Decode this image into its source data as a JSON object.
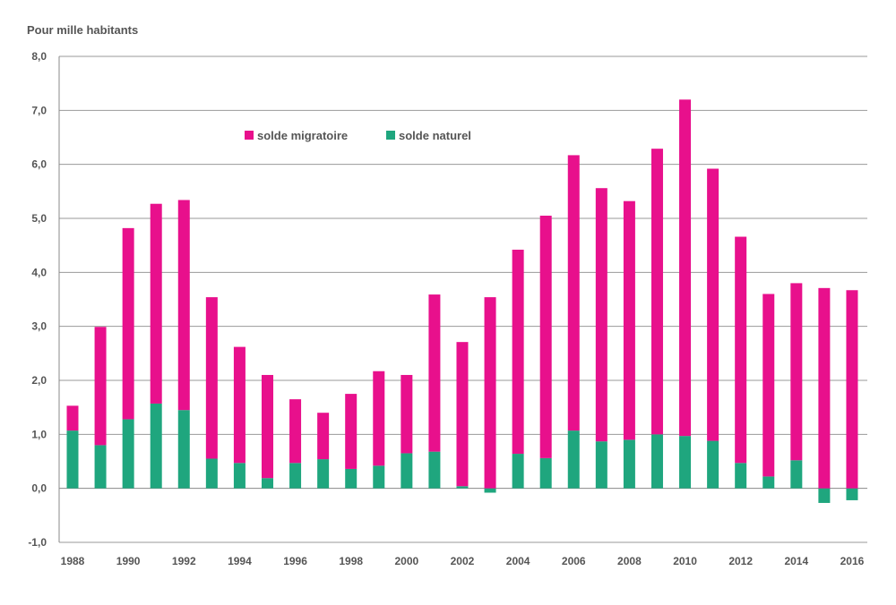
{
  "chart_data": {
    "type": "bar",
    "stacked": true,
    "ylabel": "Pour mille habitants",
    "ylim": [
      -1.0,
      8.0
    ],
    "y_ticks": [
      "-1,0",
      "0,0",
      "1,0",
      "2,0",
      "3,0",
      "4,0",
      "5,0",
      "6,0",
      "7,0",
      "8,0"
    ],
    "grid": true,
    "x": [
      1988,
      1989,
      1990,
      1991,
      1992,
      1993,
      1994,
      1995,
      1996,
      1997,
      1998,
      1999,
      2000,
      2001,
      2002,
      2003,
      2004,
      2005,
      2006,
      2007,
      2008,
      2009,
      2010,
      2011,
      2012,
      2013,
      2014,
      2015,
      2016
    ],
    "x_tick_labels": [
      "1988",
      "1990",
      "1992",
      "1994",
      "1996",
      "1998",
      "2000",
      "2002",
      "2004",
      "2006",
      "2008",
      "2010",
      "2012",
      "2014",
      "2016"
    ],
    "series": [
      {
        "name": "solde naturel",
        "color": "#1fa67e",
        "values": [
          1.07,
          0.8,
          1.28,
          1.57,
          1.45,
          0.55,
          0.47,
          0.19,
          0.47,
          0.54,
          0.36,
          0.42,
          0.65,
          0.68,
          0.04,
          -0.08,
          0.64,
          0.56,
          1.07,
          0.87,
          0.9,
          1.0,
          0.97,
          0.88,
          0.47,
          0.22,
          0.52,
          -0.27,
          -0.22
        ]
      },
      {
        "name": "solde migratoire",
        "color": "#e8108c",
        "values": [
          0.46,
          2.19,
          3.54,
          3.7,
          3.89,
          2.99,
          2.15,
          1.91,
          1.18,
          0.86,
          1.39,
          1.75,
          1.45,
          2.91,
          2.67,
          3.54,
          3.78,
          4.49,
          5.1,
          4.69,
          4.42,
          5.29,
          6.23,
          5.04,
          4.19,
          3.38,
          3.28,
          3.71,
          3.67
        ]
      }
    ],
    "legend": [
      "solde migratoire",
      "solde naturel"
    ],
    "legend_position": "top-center"
  }
}
